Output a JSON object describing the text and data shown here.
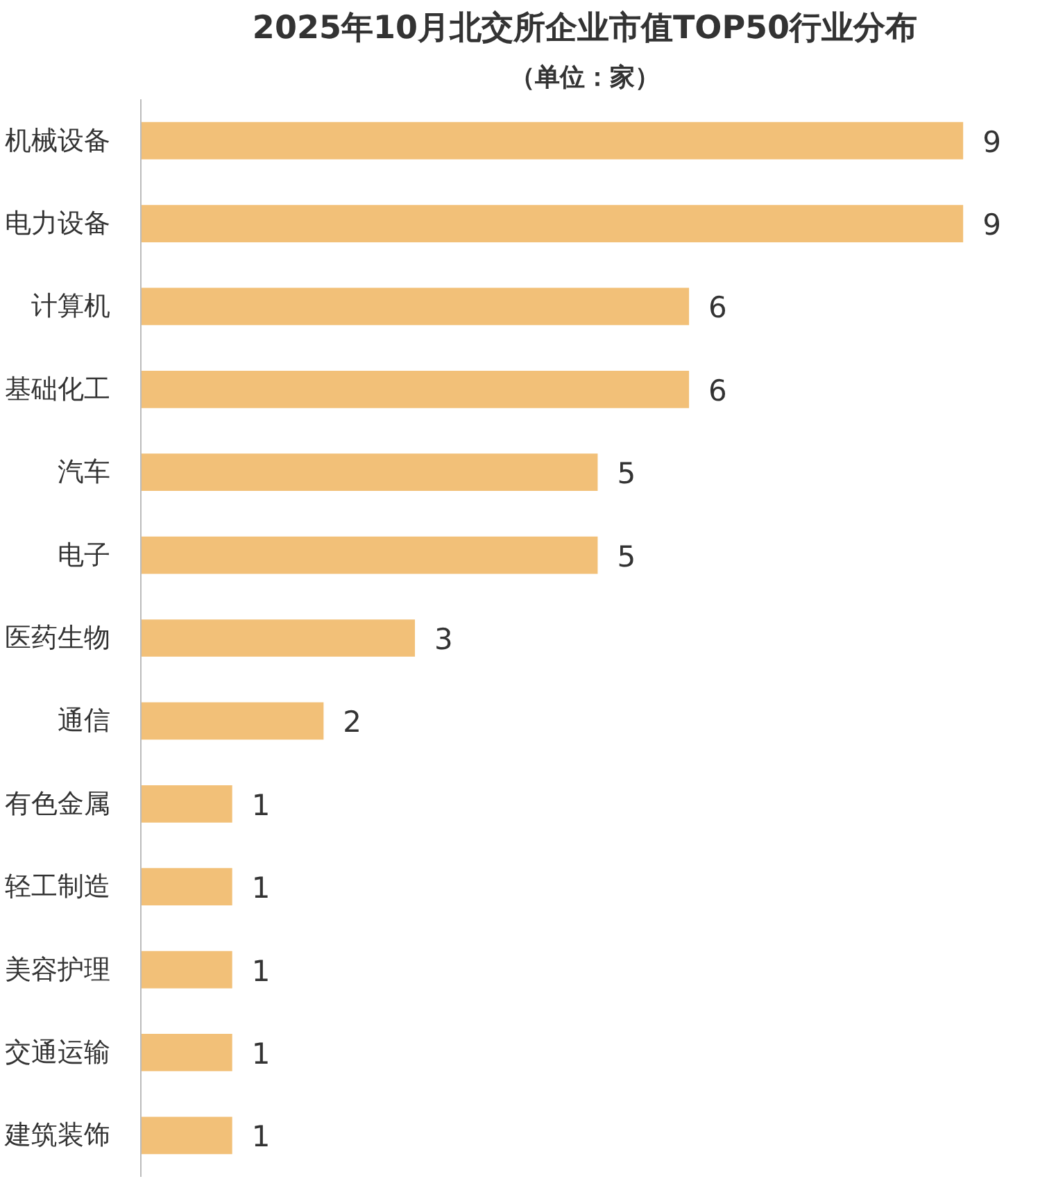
{
  "chart_data": {
    "type": "bar",
    "orientation": "horizontal",
    "title": "2025年10月北交所企业市值TOP50行业分布",
    "subtitle": "（单位：家）",
    "categories": [
      "机械设备",
      "电力设备",
      "计算机",
      "基础化工",
      "汽车",
      "电子",
      "医药生物",
      "通信",
      "有色金属",
      "轻工制造",
      "美容护理",
      "交通运输",
      "建筑装饰"
    ],
    "values": [
      9,
      9,
      6,
      6,
      5,
      5,
      3,
      2,
      1,
      1,
      1,
      1,
      1
    ],
    "color": "#f2c078",
    "data_labels": true,
    "grid": false
  }
}
